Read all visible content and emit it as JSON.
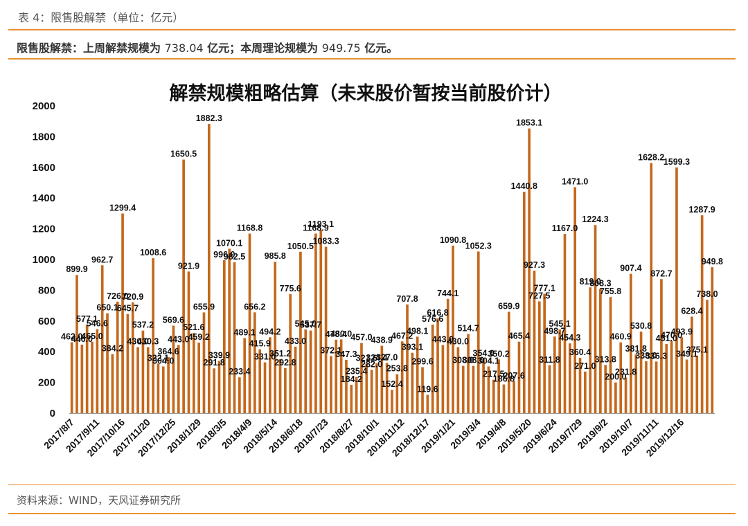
{
  "header": {
    "caption": "表 4：限售股解禁（单位：亿元）",
    "summary_part1": "限售股解禁：上周解禁规模为 ",
    "summary_num1": "738.04",
    "summary_part2": " 亿元；本周理论规模为 ",
    "summary_num2": "949.75",
    "summary_part3": " 亿元。"
  },
  "footer": {
    "source": "资料来源：WIND，天风证券研究所"
  },
  "colors": {
    "bar": "#C4681C",
    "rule": "#E8902E"
  },
  "chart_data": {
    "type": "bar",
    "title": "解禁规模粗略估算（未来股价暂按当前股价计）",
    "ylim": [
      0,
      2000
    ],
    "yticks": [
      "0",
      "200",
      "400",
      "600",
      "800",
      "1000",
      "1200",
      "1400",
      "1600",
      "1800",
      "2000"
    ],
    "x_tick_labels": [
      "2017/8/7",
      "2017/9/11",
      "2017/10/16",
      "2017/11/20",
      "2017/12/25",
      "2018/1/29",
      "2018/3/5",
      "2018/4/9",
      "2018/5/14",
      "2018/6/18",
      "2018/7/23",
      "2018/8/27",
      "2018/10/1",
      "2018/11/12",
      "2018/12/17",
      "2019/1/21",
      "2019/3/4",
      "2019/4/8",
      "2019/5/20",
      "2019/6/24",
      "2019/7/29",
      "2019/9/2",
      "2019/10/7",
      "2019/11/11",
      "2019/12/16"
    ],
    "values": [
      462.0,
      899.9,
      446.0,
      577.1,
      465.0,
      546.6,
      962.7,
      650.1,
      384.2,
      726.0,
      1299.4,
      645.7,
      720.9,
      430.0,
      537.2,
      430.3,
      1008.6,
      322.1,
      304.0,
      364.6,
      569.6,
      443.0,
      1650.5,
      921.9,
      521.6,
      459.2,
      655.9,
      1882.3,
      291.8,
      339.9,
      996.0,
      1070.1,
      982.5,
      233.4,
      489.1,
      1168.8,
      656.2,
      415.9,
      331.0,
      494.2,
      985.8,
      351.2,
      292.8,
      775.6,
      433.0,
      1050.5,
      545.0,
      537.7,
      1168.9,
      1193.1,
      1083.3,
      372.1,
      478.4,
      480.0,
      347.3,
      184.2,
      235.4,
      457.0,
      321.6,
      282.0,
      324.4,
      438.9,
      327.0,
      152.4,
      253.8,
      467.2,
      707.8,
      393.1,
      498.1,
      299.6,
      119.6,
      576.6,
      616.8,
      443.0,
      744.1,
      1090.8,
      430.0,
      308.0,
      514.7,
      308.0,
      1052.3,
      354.0,
      304.1,
      217.5,
      350.2,
      186.8,
      659.9,
      207.6,
      465.4,
      1440.8,
      1853.1,
      927.3,
      727.5,
      777.1,
      311.8,
      498.7,
      545.1,
      1167.0,
      454.3,
      1471.0,
      360.4,
      271.0,
      819.0,
      1224.3,
      808.3,
      313.8,
      755.8,
      200.0,
      460.9,
      231.8,
      907.4,
      381.8,
      530.8,
      338.0,
      1628.2,
      336.3,
      872.7,
      451.0,
      470.0,
      1599.3,
      493.9,
      349.1,
      628.4,
      375.1,
      1287.9,
      738.0,
      949.8
    ]
  }
}
